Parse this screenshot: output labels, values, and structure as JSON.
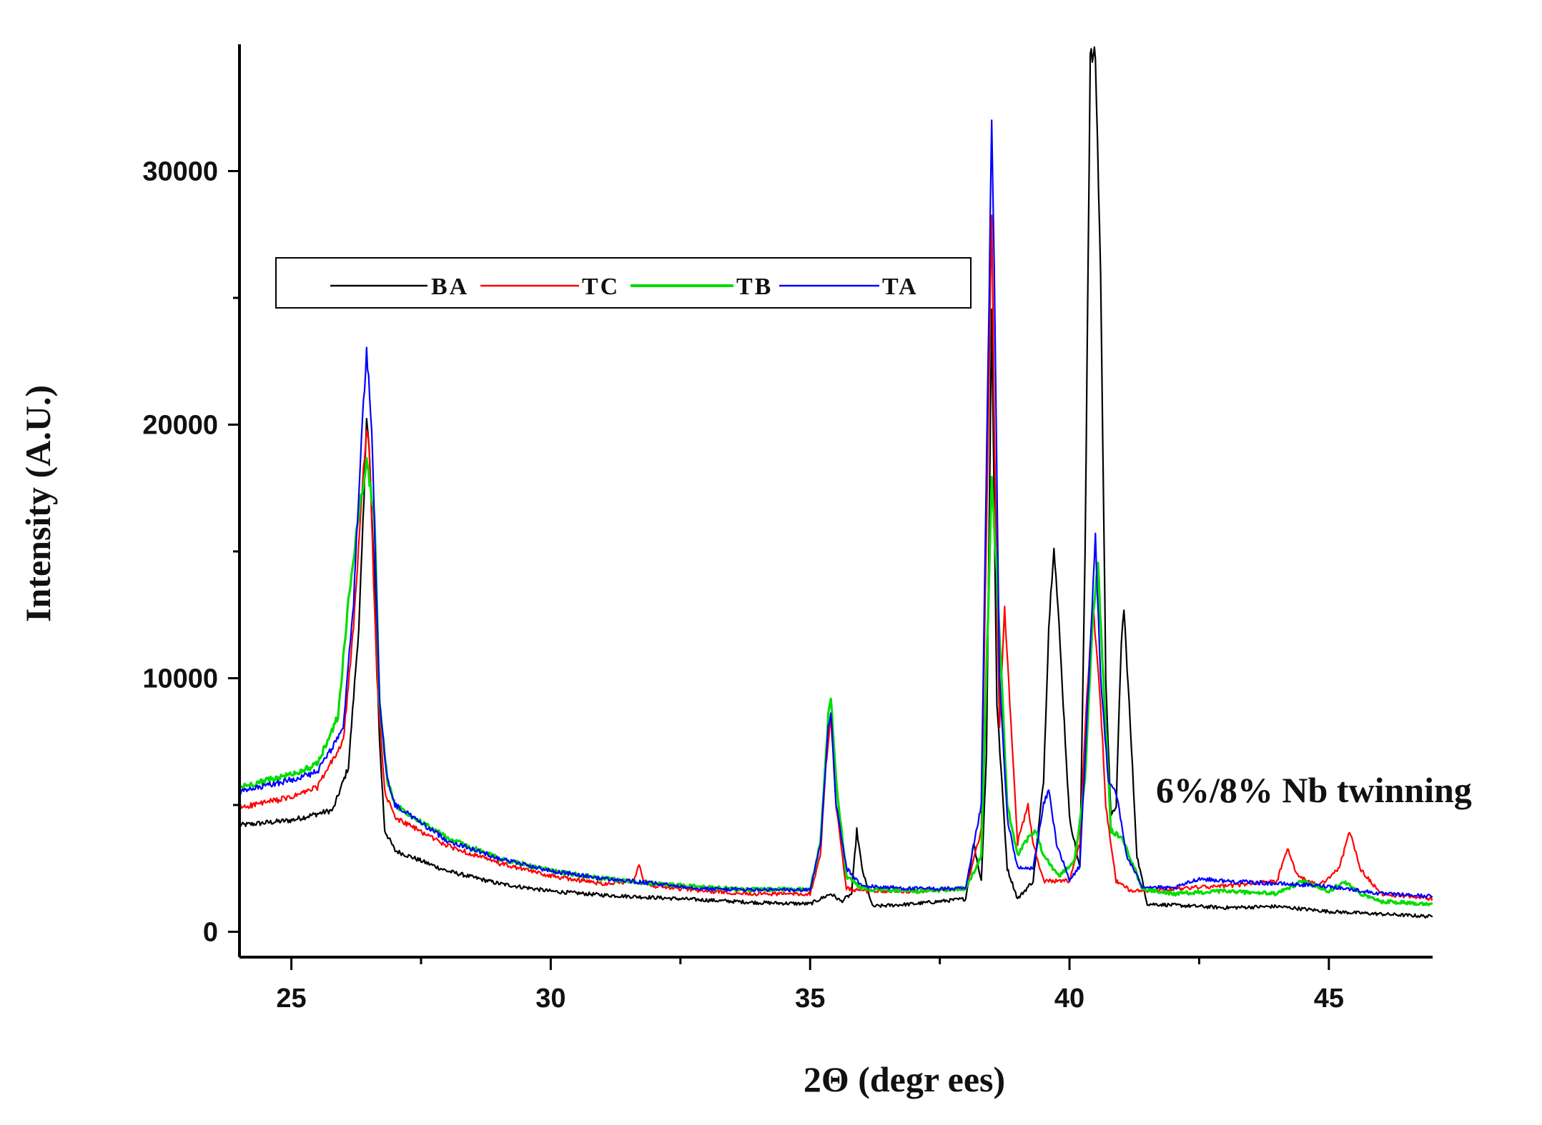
{
  "chart_data": {
    "type": "line",
    "title": "",
    "xlabel": "2Θ (degr ees)",
    "ylabel": "Intensity (A.U.)",
    "xlim": [
      24,
      47
    ],
    "ylim": [
      -1000,
      35000
    ],
    "x_ticks": [
      25,
      30,
      35,
      40,
      45
    ],
    "x_tick_labels": [
      "25",
      "30",
      "35",
      "40",
      "45"
    ],
    "y_ticks": [
      0,
      10000,
      20000,
      30000
    ],
    "y_tick_labels": [
      "0",
      "10000",
      "20000",
      "30000"
    ],
    "annotation": "6%/8% Nb twinning",
    "legend_position": "top-left",
    "grid": false,
    "series": [
      {
        "name": "BA",
        "color": "#000000",
        "points": [
          [
            24,
            4200
          ],
          [
            25,
            4400
          ],
          [
            25.8,
            4800
          ],
          [
            26.1,
            6500
          ],
          [
            26.3,
            12000
          ],
          [
            26.4,
            17000
          ],
          [
            26.45,
            20500
          ],
          [
            26.5,
            19000
          ],
          [
            26.6,
            14000
          ],
          [
            26.7,
            7500
          ],
          [
            26.8,
            4000
          ],
          [
            27,
            3200
          ],
          [
            28,
            2400
          ],
          [
            29,
            1900
          ],
          [
            30,
            1600
          ],
          [
            31,
            1450
          ],
          [
            32,
            1350
          ],
          [
            33,
            1250
          ],
          [
            34,
            1150
          ],
          [
            35,
            1100
          ],
          [
            35.2,
            1300
          ],
          [
            35.4,
            1500
          ],
          [
            35.6,
            1200
          ],
          [
            35.8,
            1500
          ],
          [
            35.9,
            4000
          ],
          [
            36.0,
            2500
          ],
          [
            36.2,
            1000
          ],
          [
            37,
            1100
          ],
          [
            38,
            1300
          ],
          [
            38.15,
            3500
          ],
          [
            38.3,
            2000
          ],
          [
            38.4,
            7000
          ],
          [
            38.5,
            24500
          ],
          [
            38.6,
            9000
          ],
          [
            38.8,
            2500
          ],
          [
            39,
            1300
          ],
          [
            39.3,
            2000
          ],
          [
            39.5,
            6000
          ],
          [
            39.6,
            12000
          ],
          [
            39.7,
            15300
          ],
          [
            39.8,
            12000
          ],
          [
            40.0,
            4500
          ],
          [
            40.2,
            2500
          ],
          [
            40.3,
            15000
          ],
          [
            40.4,
            34500
          ],
          [
            40.5,
            34500
          ],
          [
            40.6,
            26000
          ],
          [
            40.7,
            10000
          ],
          [
            40.8,
            4500
          ],
          [
            40.9,
            5000
          ],
          [
            41.0,
            11500
          ],
          [
            41.05,
            12700
          ],
          [
            41.15,
            9000
          ],
          [
            41.3,
            3000
          ],
          [
            41.5,
            1100
          ],
          [
            42,
            1050
          ],
          [
            43,
            950
          ],
          [
            44,
            1000
          ],
          [
            45,
            800
          ],
          [
            46,
            700
          ],
          [
            47,
            600
          ]
        ]
      },
      {
        "name": "TC",
        "color": "#ff0000",
        "points": [
          [
            24,
            4900
          ],
          [
            25,
            5300
          ],
          [
            25.5,
            5700
          ],
          [
            26,
            7500
          ],
          [
            26.2,
            12000
          ],
          [
            26.35,
            17000
          ],
          [
            26.45,
            20000
          ],
          [
            26.5,
            19000
          ],
          [
            26.65,
            10000
          ],
          [
            26.8,
            5500
          ],
          [
            27,
            4500
          ],
          [
            28,
            3400
          ],
          [
            29,
            2700
          ],
          [
            30,
            2200
          ],
          [
            31,
            1900
          ],
          [
            31.6,
            2000
          ],
          [
            31.7,
            2600
          ],
          [
            31.8,
            2000
          ],
          [
            32,
            1800
          ],
          [
            33,
            1600
          ],
          [
            34,
            1500
          ],
          [
            35,
            1500
          ],
          [
            35.2,
            3000
          ],
          [
            35.3,
            6500
          ],
          [
            35.4,
            8500
          ],
          [
            35.5,
            5000
          ],
          [
            35.7,
            1700
          ],
          [
            36,
            1600
          ],
          [
            37,
            1600
          ],
          [
            38,
            1700
          ],
          [
            38.3,
            4000
          ],
          [
            38.45,
            22000
          ],
          [
            38.5,
            28500
          ],
          [
            38.55,
            20000
          ],
          [
            38.65,
            8000
          ],
          [
            38.75,
            12800
          ],
          [
            38.85,
            9000
          ],
          [
            39.0,
            3500
          ],
          [
            39.2,
            5000
          ],
          [
            39.3,
            3500
          ],
          [
            39.5,
            2000
          ],
          [
            40.0,
            2000
          ],
          [
            40.2,
            3500
          ],
          [
            40.3,
            8000
          ],
          [
            40.45,
            13000
          ],
          [
            40.6,
            9000
          ],
          [
            40.7,
            5000
          ],
          [
            40.9,
            2000
          ],
          [
            41.2,
            1600
          ],
          [
            42,
            1700
          ],
          [
            43,
            1800
          ],
          [
            44,
            2000
          ],
          [
            44.2,
            3300
          ],
          [
            44.4,
            2200
          ],
          [
            44.8,
            1800
          ],
          [
            45.2,
            2500
          ],
          [
            45.4,
            4000
          ],
          [
            45.6,
            2500
          ],
          [
            46,
            1500
          ],
          [
            47,
            1300
          ]
        ]
      },
      {
        "name": "TB",
        "color": "#00dd00",
        "points": [
          [
            24,
            5700
          ],
          [
            25,
            6200
          ],
          [
            25.5,
            6600
          ],
          [
            25.9,
            8500
          ],
          [
            26.1,
            13000
          ],
          [
            26.3,
            16500
          ],
          [
            26.45,
            18500
          ],
          [
            26.6,
            16500
          ],
          [
            26.7,
            9000
          ],
          [
            26.85,
            6000
          ],
          [
            27,
            5000
          ],
          [
            28,
            3700
          ],
          [
            29,
            2900
          ],
          [
            30,
            2400
          ],
          [
            31,
            2100
          ],
          [
            32,
            1900
          ],
          [
            33,
            1750
          ],
          [
            34,
            1650
          ],
          [
            35,
            1700
          ],
          [
            35.2,
            3500
          ],
          [
            35.35,
            8500
          ],
          [
            35.4,
            9300
          ],
          [
            35.5,
            6000
          ],
          [
            35.7,
            2200
          ],
          [
            36,
            1700
          ],
          [
            37,
            1600
          ],
          [
            38,
            1700
          ],
          [
            38.3,
            3000
          ],
          [
            38.45,
            14000
          ],
          [
            38.5,
            17800
          ],
          [
            38.6,
            14000
          ],
          [
            38.8,
            5000
          ],
          [
            39.0,
            3000
          ],
          [
            39.2,
            3700
          ],
          [
            39.35,
            4000
          ],
          [
            39.5,
            3000
          ],
          [
            39.8,
            2200
          ],
          [
            40.1,
            2800
          ],
          [
            40.3,
            6000
          ],
          [
            40.45,
            12500
          ],
          [
            40.55,
            14500
          ],
          [
            40.65,
            10000
          ],
          [
            40.8,
            4000
          ],
          [
            41.0,
            3700
          ],
          [
            41.2,
            2800
          ],
          [
            41.4,
            1700
          ],
          [
            42,
            1500
          ],
          [
            43,
            1600
          ],
          [
            44,
            1500
          ],
          [
            44.5,
            2000
          ],
          [
            45,
            1600
          ],
          [
            45.3,
            2000
          ],
          [
            45.6,
            1500
          ],
          [
            46,
            1200
          ],
          [
            47,
            1100
          ]
        ]
      },
      {
        "name": "TA",
        "color": "#0000ff",
        "points": [
          [
            24,
            5500
          ],
          [
            25,
            6000
          ],
          [
            25.5,
            6300
          ],
          [
            26,
            8000
          ],
          [
            26.2,
            13000
          ],
          [
            26.35,
            19500
          ],
          [
            26.45,
            22800
          ],
          [
            26.55,
            20000
          ],
          [
            26.7,
            9000
          ],
          [
            26.85,
            6000
          ],
          [
            27,
            5000
          ],
          [
            28,
            3600
          ],
          [
            29,
            2900
          ],
          [
            30,
            2400
          ],
          [
            31,
            2100
          ],
          [
            32,
            1900
          ],
          [
            33,
            1700
          ],
          [
            34,
            1650
          ],
          [
            35,
            1650
          ],
          [
            35.2,
            3500
          ],
          [
            35.35,
            8000
          ],
          [
            35.4,
            8700
          ],
          [
            35.5,
            5000
          ],
          [
            35.7,
            2500
          ],
          [
            36,
            1800
          ],
          [
            37,
            1700
          ],
          [
            38,
            1700
          ],
          [
            38.3,
            5000
          ],
          [
            38.45,
            25000
          ],
          [
            38.5,
            32000
          ],
          [
            38.55,
            26000
          ],
          [
            38.65,
            10000
          ],
          [
            38.8,
            4500
          ],
          [
            39.0,
            2500
          ],
          [
            39.3,
            2500
          ],
          [
            39.5,
            5000
          ],
          [
            39.6,
            5600
          ],
          [
            39.75,
            3500
          ],
          [
            40.0,
            2000
          ],
          [
            40.2,
            2600
          ],
          [
            40.35,
            9000
          ],
          [
            40.5,
            15500
          ],
          [
            40.6,
            10000
          ],
          [
            40.75,
            6000
          ],
          [
            40.9,
            5500
          ],
          [
            41.1,
            3000
          ],
          [
            41.4,
            1800
          ],
          [
            42,
            1700
          ],
          [
            42.5,
            2100
          ],
          [
            43,
            2000
          ],
          [
            44,
            1900
          ],
          [
            45,
            1800
          ],
          [
            46,
            1500
          ],
          [
            47,
            1400
          ]
        ]
      }
    ]
  }
}
